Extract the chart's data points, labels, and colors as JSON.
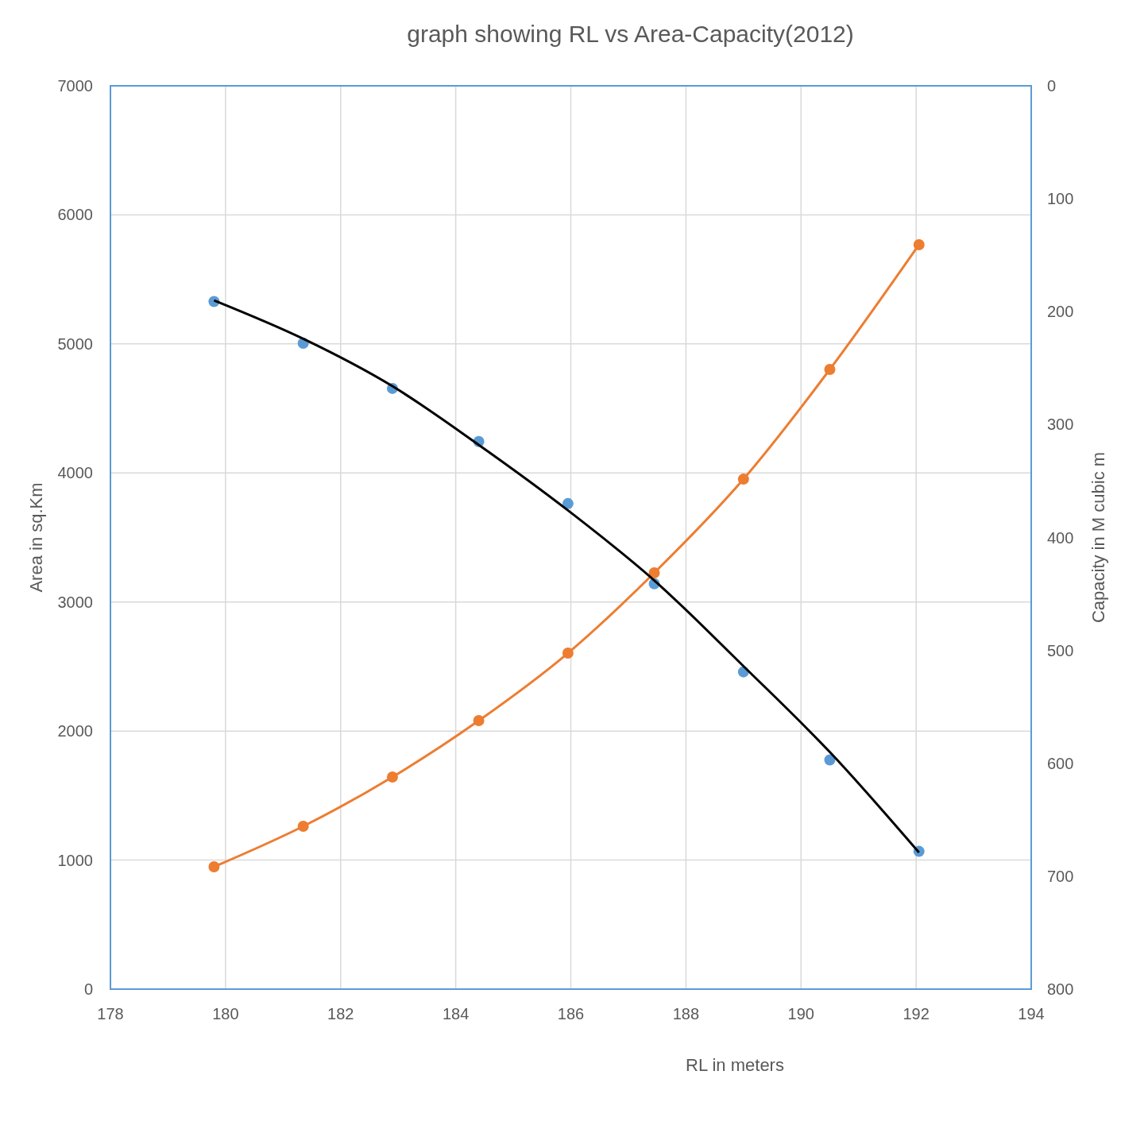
{
  "chart_data": {
    "type": "line",
    "title": "graph showing RL vs Area-Capacity(2012)",
    "xlabel": "RL in meters",
    "ylabel": "Area in sq.Km",
    "y2label": "Capacity in M cubic m",
    "x": [
      179.8,
      181.35,
      182.9,
      184.4,
      185.95,
      187.45,
      189.0,
      190.5,
      192.05
    ],
    "series": [
      {
        "color": "#ed7d31",
        "marker": "circle",
        "values": [
          948,
          1262,
          1644,
          2081,
          2604,
          3226,
          3952,
          4802,
          5769
        ]
      },
      {
        "type": "scatter",
        "color": "#5b9bd5",
        "axis": "y2",
        "marker": "circle",
        "values": [
          191,
          228,
          268,
          315,
          370,
          441,
          519,
          597,
          678
        ]
      },
      {
        "type": "line",
        "color": "#000000",
        "axis": "y2",
        "marker": "none",
        "values": [
          190,
          224,
          266,
          318,
          376,
          438,
          514,
          590,
          679
        ]
      }
    ],
    "xlim": [
      178,
      194
    ],
    "xticks": [
      178,
      180,
      182,
      184,
      186,
      188,
      190,
      192,
      194
    ],
    "ylim": [
      0,
      7000
    ],
    "yticks": [
      0,
      1000,
      2000,
      3000,
      4000,
      5000,
      6000,
      7000
    ],
    "y2lim": [
      800,
      0
    ],
    "y2ticks": [
      0,
      100,
      200,
      300,
      400,
      500,
      600,
      700,
      800
    ],
    "grid": true,
    "line_style": "solid"
  }
}
